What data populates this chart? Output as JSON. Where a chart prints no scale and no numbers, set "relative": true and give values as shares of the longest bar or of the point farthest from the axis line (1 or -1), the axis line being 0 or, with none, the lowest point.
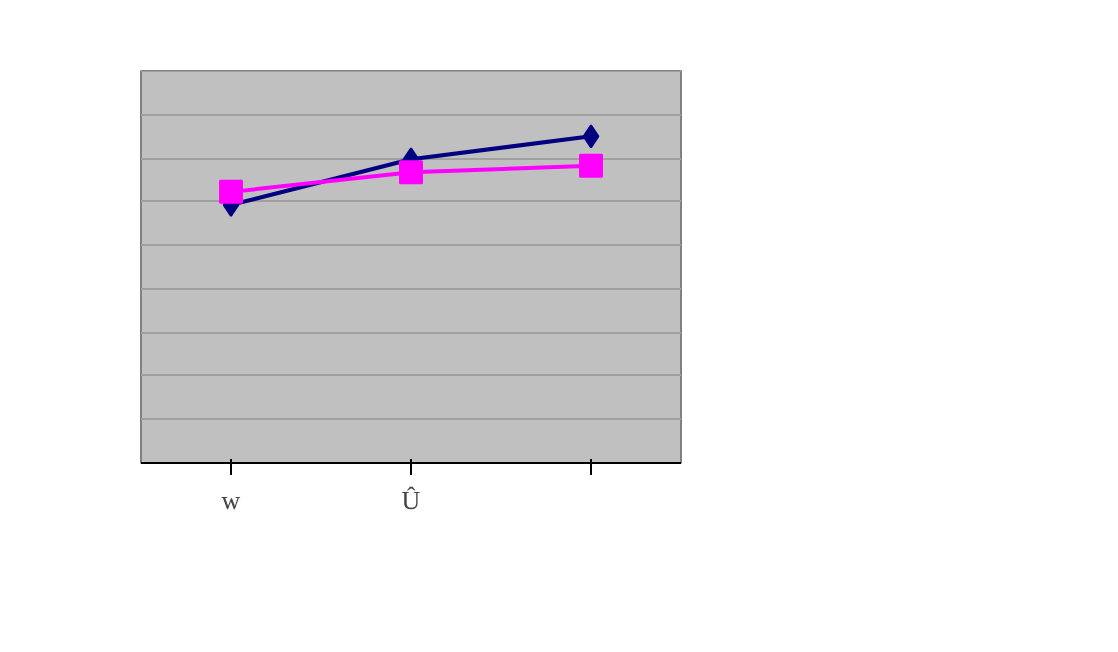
{
  "chart_data": {
    "type": "line",
    "relative": true,
    "categories": [
      "w",
      "Û",
      null
    ],
    "series": [
      {
        "color": "#000080",
        "values": [
          0.79,
          0.93,
          1.0
        ],
        "marker": "diamond"
      },
      {
        "color": "#ff00ff",
        "values": [
          0.83,
          0.89,
          0.91
        ],
        "marker": "square"
      }
    ],
    "grid": "y",
    "line_style": "solid"
  }
}
